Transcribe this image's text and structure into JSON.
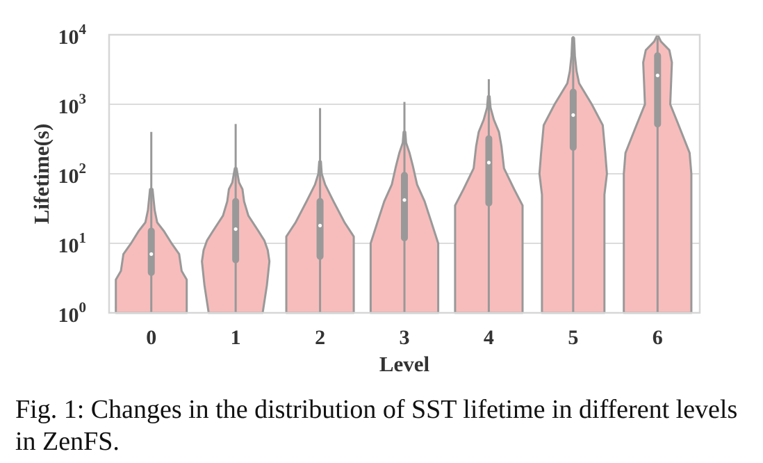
{
  "chart_data": {
    "type": "violin",
    "title": "",
    "xlabel": "Level",
    "ylabel": "Lifetime(s)",
    "yscale": "log",
    "ylim": [
      1,
      10000
    ],
    "grid": true,
    "y_ticks": [
      {
        "value": 1,
        "base": "10",
        "exp": "0"
      },
      {
        "value": 10,
        "base": "10",
        "exp": "1"
      },
      {
        "value": 100,
        "base": "10",
        "exp": "2"
      },
      {
        "value": 1000,
        "base": "10",
        "exp": "3"
      },
      {
        "value": 10000,
        "base": "10",
        "exp": "4"
      }
    ],
    "categories": [
      "0",
      "1",
      "2",
      "3",
      "4",
      "5",
      "6"
    ],
    "fill_color": "#f7bdbc",
    "edge_color": "#999999",
    "median_color": "#ffffff",
    "violins": [
      {
        "level": "0",
        "max": 400,
        "q1": 3.8,
        "median": 7,
        "q3": 15,
        "profile": [
          [
            1,
            0.42
          ],
          [
            3,
            0.42
          ],
          [
            4,
            0.36
          ],
          [
            7,
            0.33
          ],
          [
            10,
            0.24
          ],
          [
            15,
            0.15
          ],
          [
            20,
            0.07
          ],
          [
            30,
            0.04
          ],
          [
            60,
            0.015
          ]
        ]
      },
      {
        "level": "1",
        "max": 520,
        "q1": 5.8,
        "median": 16,
        "q3": 40,
        "profile": [
          [
            1,
            0.32
          ],
          [
            2.5,
            0.37
          ],
          [
            5.5,
            0.4
          ],
          [
            8,
            0.38
          ],
          [
            11,
            0.34
          ],
          [
            15,
            0.27
          ],
          [
            25,
            0.15
          ],
          [
            40,
            0.1
          ],
          [
            60,
            0.08
          ],
          [
            75,
            0.04
          ],
          [
            120,
            0.01
          ]
        ]
      },
      {
        "level": "2",
        "max": 880,
        "q1": 6.5,
        "median": 18,
        "q3": 40,
        "profile": [
          [
            1,
            0.4
          ],
          [
            12.5,
            0.4
          ],
          [
            20,
            0.29
          ],
          [
            40,
            0.16
          ],
          [
            70,
            0.06
          ],
          [
            100,
            0.02
          ],
          [
            150,
            0.01
          ]
        ]
      },
      {
        "level": "3",
        "max": 1080,
        "q1": 12,
        "median": 42,
        "q3": 95,
        "profile": [
          [
            1,
            0.4
          ],
          [
            10,
            0.4
          ],
          [
            20,
            0.32
          ],
          [
            40,
            0.24
          ],
          [
            70,
            0.15
          ],
          [
            130,
            0.1
          ],
          [
            200,
            0.06
          ],
          [
            280,
            0.02
          ],
          [
            400,
            0.01
          ]
        ]
      },
      {
        "level": "4",
        "max": 2300,
        "q1": 38,
        "median": 145,
        "q3": 320,
        "profile": [
          [
            1,
            0.4
          ],
          [
            35,
            0.4
          ],
          [
            60,
            0.3
          ],
          [
            120,
            0.18
          ],
          [
            250,
            0.15
          ],
          [
            400,
            0.12
          ],
          [
            600,
            0.06
          ],
          [
            900,
            0.02
          ],
          [
            1300,
            0.01
          ]
        ]
      },
      {
        "level": "5",
        "max": 9500,
        "q1": 240,
        "median": 700,
        "q3": 1500,
        "profile": [
          [
            1,
            0.37
          ],
          [
            50,
            0.37
          ],
          [
            100,
            0.4
          ],
          [
            200,
            0.38
          ],
          [
            500,
            0.35
          ],
          [
            1000,
            0.22
          ],
          [
            2000,
            0.07
          ],
          [
            3000,
            0.04
          ],
          [
            5000,
            0.02
          ],
          [
            9000,
            0.01
          ]
        ]
      },
      {
        "level": "6",
        "max": 9000,
        "q1": 520,
        "median": 2600,
        "q3": 5000,
        "profile": [
          [
            1,
            0.4
          ],
          [
            100,
            0.4
          ],
          [
            200,
            0.38
          ],
          [
            500,
            0.25
          ],
          [
            1000,
            0.15
          ],
          [
            2000,
            0.16
          ],
          [
            4000,
            0.17
          ],
          [
            6000,
            0.14
          ],
          [
            8000,
            0.04
          ],
          [
            9500,
            0.01
          ]
        ]
      }
    ]
  },
  "caption": "Fig. 1: Changes in the distribution of SST lifetime in different levels in ZenFS."
}
